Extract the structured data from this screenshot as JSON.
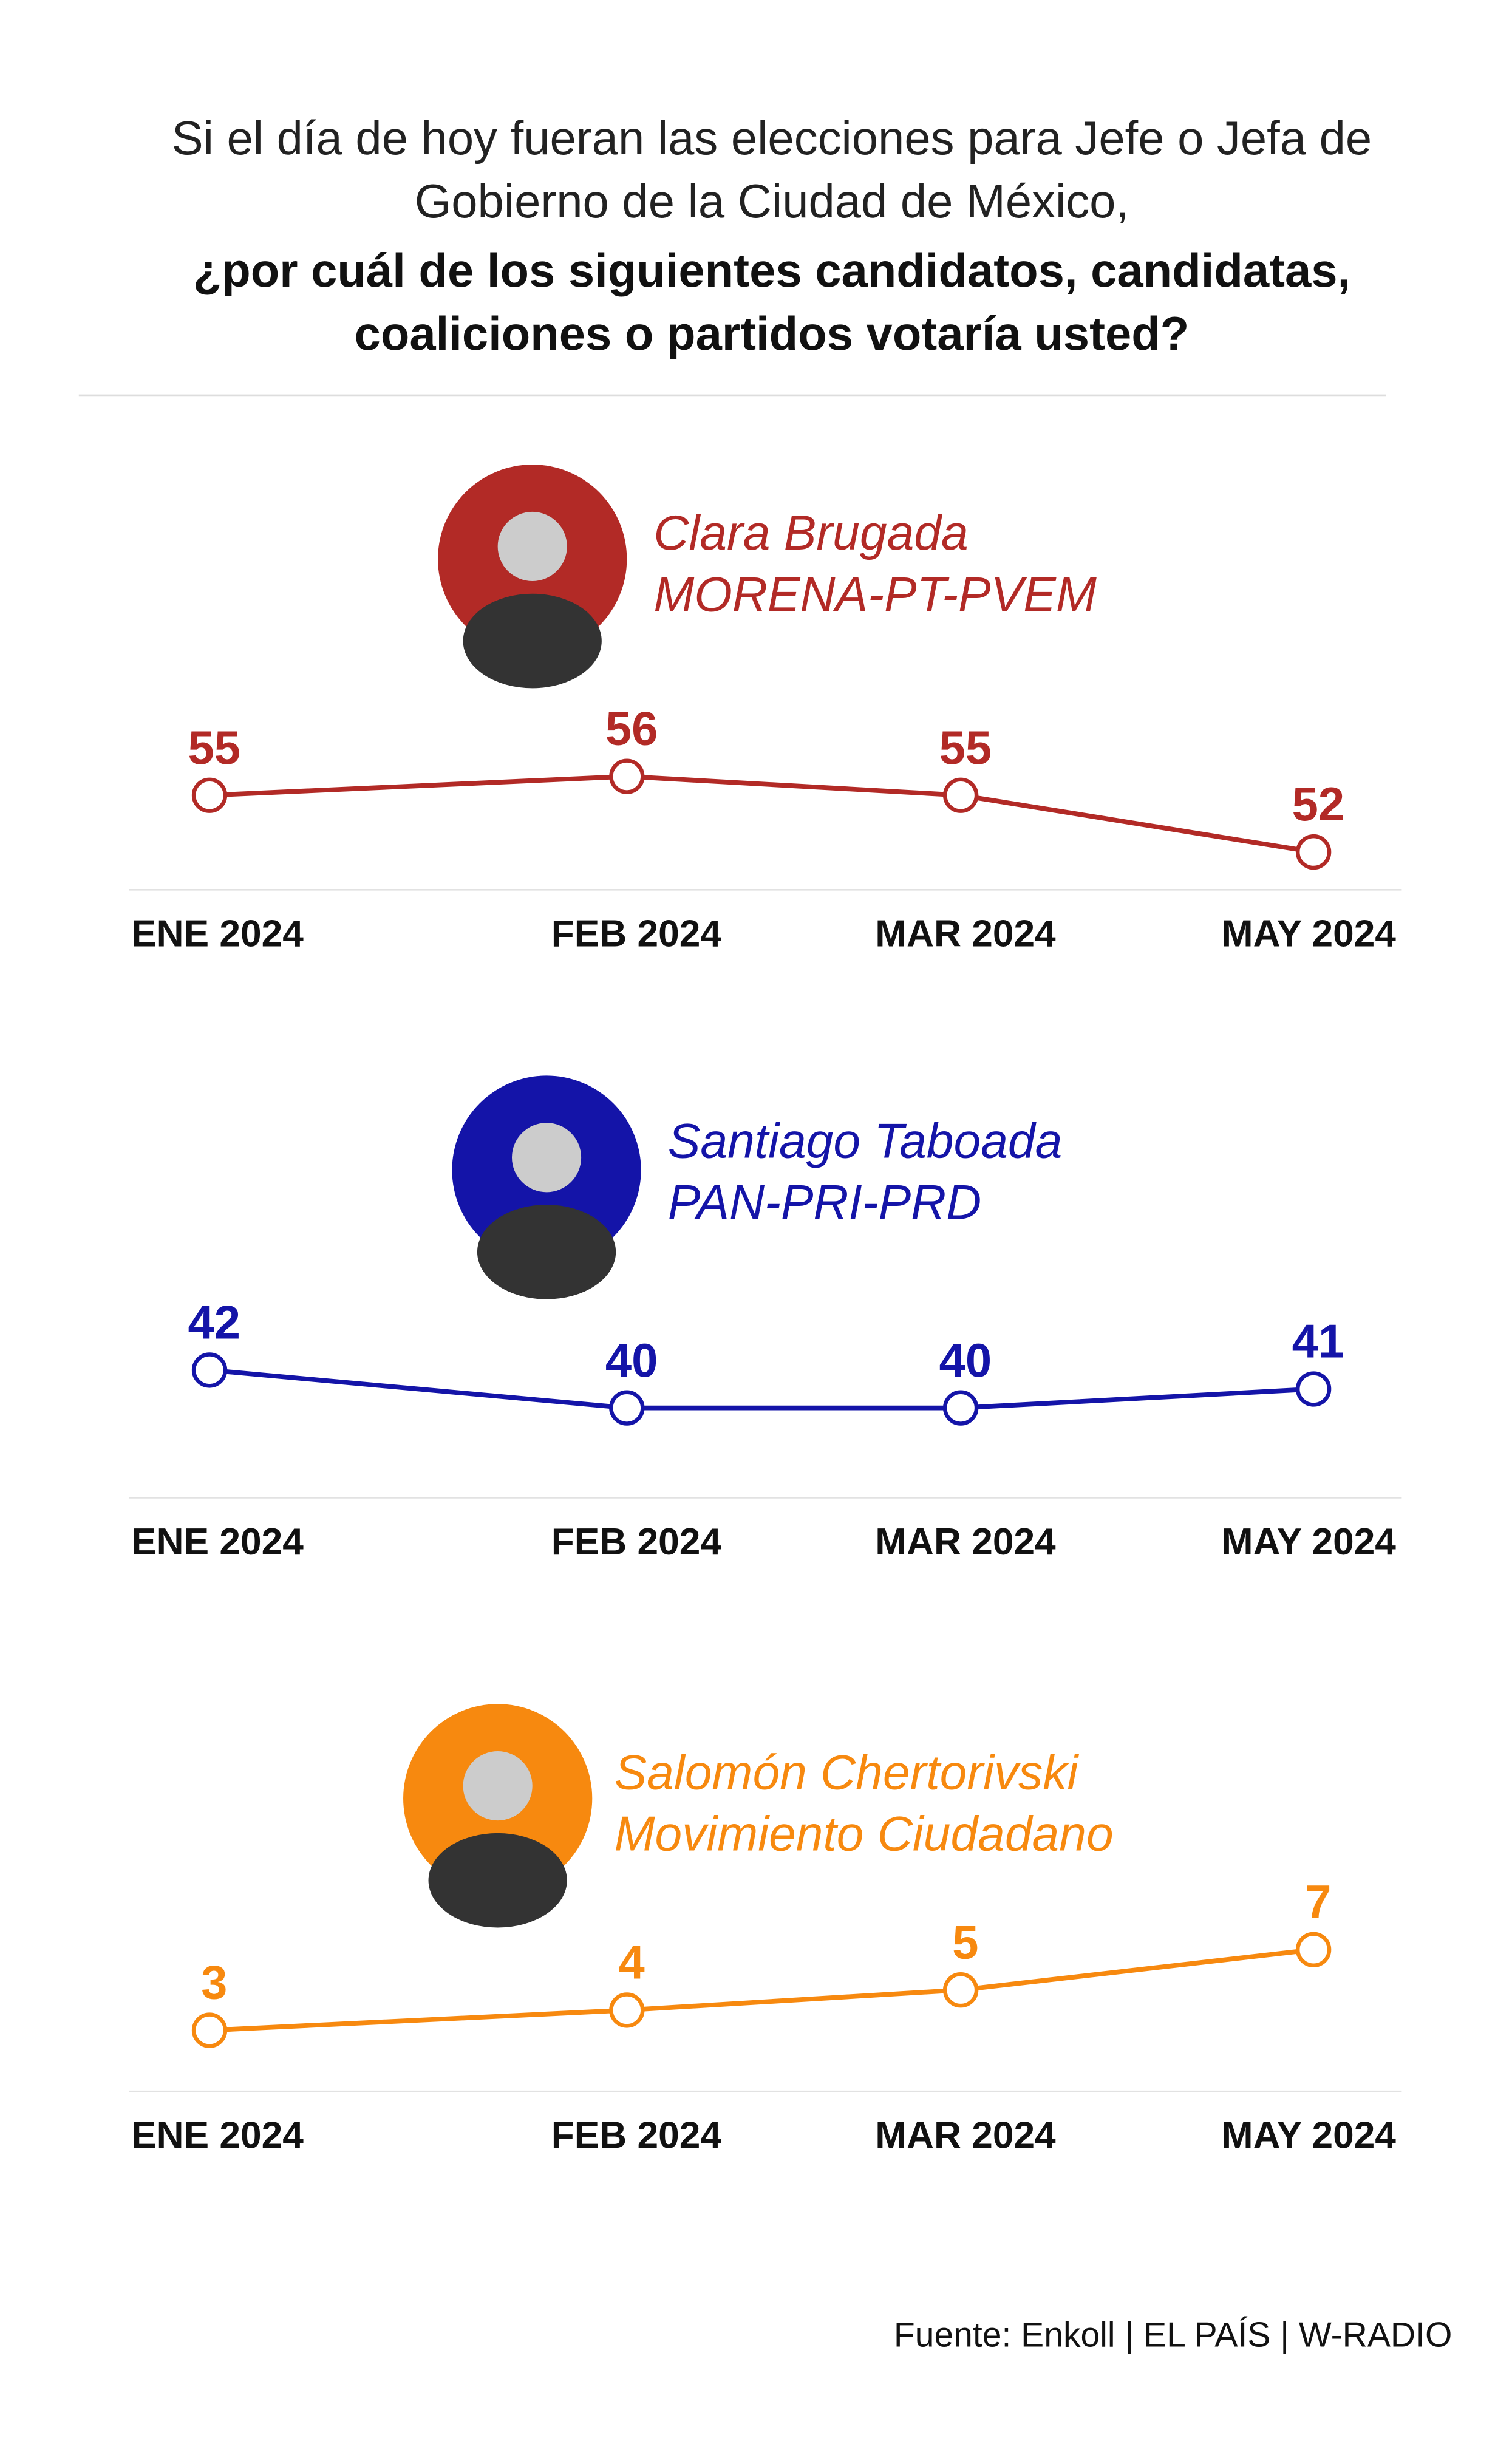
{
  "header": {
    "question": [
      "Si el día de hoy fueran las elecciones para Jefe o Jefa de",
      "Gobierno de la Ciudad de México,"
    ],
    "question_bold": [
      "¿por cuál de los siguientes candidatos, candidatas,",
      "coaliciones o partidos votaría usted?"
    ]
  },
  "chart_data": [
    {
      "type": "line",
      "title": "Clara Brugada",
      "subtitle": "MORENA-PT-PVEM",
      "categories": [
        "ENE 2024",
        "FEB 2024",
        "MAR 2024",
        "MAY 2024"
      ],
      "values": [
        55,
        56,
        55,
        52
      ],
      "color": "#b22a26"
    },
    {
      "type": "line",
      "title": "Santiago Taboada",
      "subtitle": "PAN-PRI-PRD",
      "categories": [
        "ENE 2024",
        "FEB 2024",
        "MAR 2024",
        "MAY 2024"
      ],
      "values": [
        42,
        40,
        40,
        41
      ],
      "color": "#1414a8"
    },
    {
      "type": "line",
      "title": "Salomón Chertorivski",
      "subtitle": "Movimiento Ciudadano",
      "categories": [
        "ENE 2024",
        "FEB 2024",
        "MAR 2024",
        "MAY 2024"
      ],
      "values": [
        3,
        4,
        5,
        7
      ],
      "color": "#f7890f"
    }
  ],
  "source": "Fuente: Enkoll | EL PAÍS | W-RADIO"
}
